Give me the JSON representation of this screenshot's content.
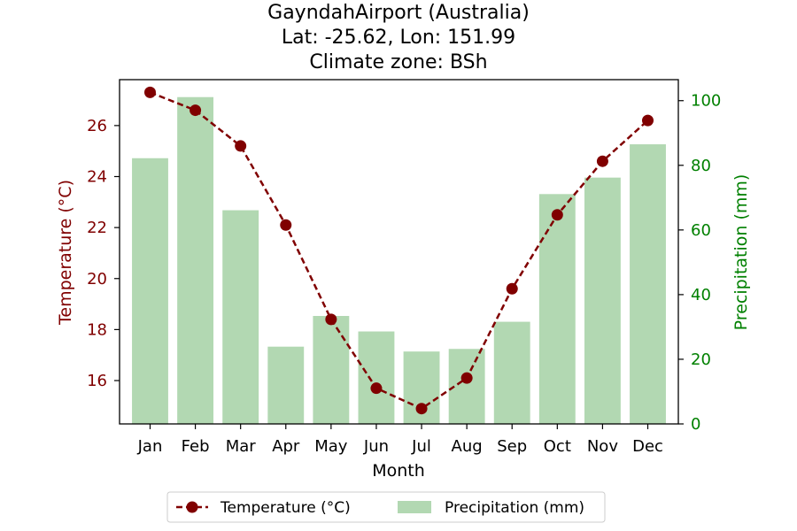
{
  "chart_data": {
    "type": "bar+line",
    "title_lines": [
      "GayndahAirport (Australia)",
      "Lat: -25.62, Lon: 151.99",
      "Climate zone: BSh"
    ],
    "xlabel": "Month",
    "categories": [
      "Jan",
      "Feb",
      "Mar",
      "Apr",
      "May",
      "Jun",
      "Jul",
      "Aug",
      "Sep",
      "Oct",
      "Nov",
      "Dec"
    ],
    "temperature": {
      "name": "Temperature (°C)",
      "axis_label": "Temperature (°C)",
      "values": [
        27.3,
        26.6,
        25.2,
        22.1,
        18.4,
        15.7,
        14.9,
        16.1,
        19.6,
        22.5,
        24.6,
        26.2
      ],
      "ylim": [
        14.3,
        27.8
      ],
      "ticks": [
        16,
        18,
        20,
        22,
        24,
        26
      ],
      "color": "#800000"
    },
    "precipitation": {
      "name": "Precipitation (mm)",
      "axis_label": "Precipitation (mm)",
      "values": [
        82.2,
        101.1,
        66.1,
        23.9,
        33.4,
        28.6,
        22.4,
        23.2,
        31.6,
        71.1,
        76.2,
        86.5
      ],
      "ylim": [
        0,
        106.5
      ],
      "ticks": [
        0,
        20,
        40,
        60,
        80,
        100
      ],
      "color": "#008000",
      "bar_color": "#b2d8b2"
    },
    "legend_position": "bottom-center",
    "grid": false
  }
}
